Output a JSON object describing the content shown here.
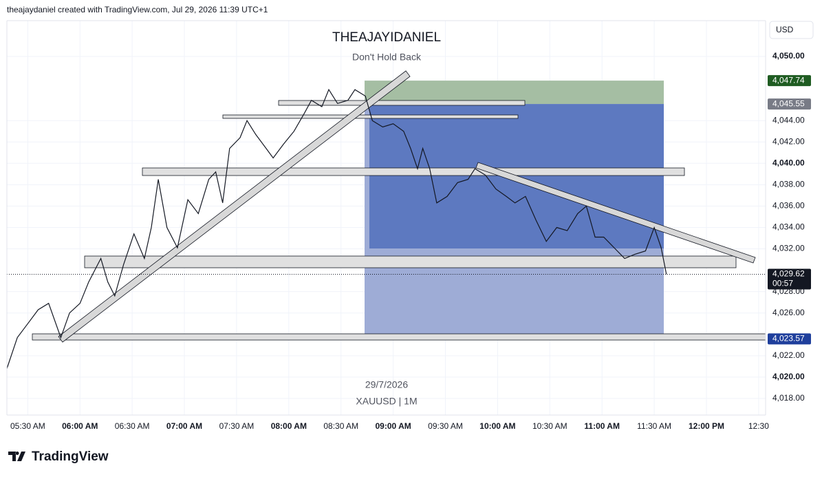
{
  "header": "theajaydaniel created with TradingView.com, Jul 29, 2026 11:39 UTC+1",
  "logo": "TradingView",
  "chart_data": {
    "type": "line",
    "title": "THEAJAYIDANIEL",
    "subtitle": "Don't Hold Back",
    "watermark": [
      "29/7/2026",
      "XAUUSD | 1M"
    ],
    "currency": "USD",
    "color": "#131722",
    "x": [
      "05:18 AM",
      "05:24 AM",
      "05:30 AM",
      "05:36 AM",
      "05:42 AM",
      "05:49 AM",
      "05:54 AM",
      "06:00 AM",
      "06:05 AM",
      "06:12 AM",
      "06:16 AM",
      "06:20 AM",
      "06:25 AM",
      "06:31 AM",
      "06:37 AM",
      "06:41 AM",
      "06:45 AM",
      "06:50 AM",
      "06:56 AM",
      "07:02 AM",
      "07:08 AM",
      "07:14 AM",
      "07:18 AM",
      "07:22 AM",
      "07:26 AM",
      "07:32 AM",
      "07:36 AM",
      "07:41 AM",
      "07:47 AM",
      "07:51 AM",
      "07:57 AM",
      "08:03 AM",
      "08:09 AM",
      "08:13 AM",
      "08:19 AM",
      "08:23 AM",
      "08:28 AM",
      "08:34 AM",
      "08:38 AM",
      "08:44 AM",
      "08:48 AM",
      "08:54 AM",
      "09:00 AM",
      "09:06 AM",
      "09:10 AM",
      "09:14 AM",
      "09:17 AM",
      "09:21 AM",
      "09:25 AM",
      "09:31 AM",
      "09:37 AM",
      "09:43 AM",
      "09:47 AM",
      "09:53 AM",
      "09:59 AM",
      "10:05 AM",
      "10:10 AM",
      "10:16 AM",
      "10:22 AM",
      "10:28 AM",
      "10:34 AM",
      "10:40 AM",
      "10:46 AM",
      "10:51 AM",
      "10:56 AM",
      "11:01 AM",
      "11:07 AM",
      "11:13 AM",
      "11:19 AM",
      "11:25 AM",
      "11:30 AM",
      "11:34 AM",
      "11:37 AM"
    ],
    "values": [
      4020.8,
      4023.7,
      4025.0,
      4026.3,
      4026.9,
      4023.7,
      4026.0,
      4026.9,
      4028.9,
      4031.1,
      4028.9,
      4027.6,
      4030.5,
      4033.4,
      4031.1,
      4034.0,
      4038.5,
      4034.0,
      4032.1,
      4036.6,
      4035.3,
      4038.5,
      4039.2,
      4036.3,
      4041.4,
      4042.4,
      4044.0,
      4042.7,
      4041.4,
      4040.5,
      4041.8,
      4043.0,
      4044.7,
      4045.9,
      4045.3,
      4046.9,
      4045.6,
      4045.9,
      4046.9,
      4046.3,
      4044.0,
      4043.4,
      4043.7,
      4043.0,
      4041.4,
      4039.5,
      4041.4,
      4039.5,
      4036.3,
      4036.9,
      4038.2,
      4038.5,
      4039.5,
      4038.9,
      4037.6,
      4036.9,
      4036.3,
      4036.9,
      4034.7,
      4032.7,
      4034.0,
      4033.7,
      4035.3,
      4036.0,
      4033.1,
      4033.1,
      4032.1,
      4031.1,
      4031.5,
      4031.8,
      4034.0,
      4032.1,
      4029.62
    ],
    "xlim": [
      "05:18 AM",
      "12:34 PM"
    ],
    "xticks": [
      "05:30 AM",
      "06:00 AM",
      "06:30 AM",
      "07:00 AM",
      "07:30 AM",
      "08:00 AM",
      "08:30 AM",
      "09:00 AM",
      "09:30 AM",
      "10:00 AM",
      "10:30 AM",
      "11:00 AM",
      "11:30 AM",
      "12:00 PM",
      {
        "value": "12:30 PM",
        "label": "12:30"
      }
    ],
    "ylim": [
      4016.45,
      4053.35
    ],
    "yticks": [
      {
        "value": 4018,
        "label": "4,018.00"
      },
      {
        "value": 4020,
        "label": "4,020.00"
      },
      {
        "value": 4022,
        "label": "4,022.00"
      },
      {
        "value": 4026,
        "label": "4,026.00"
      },
      {
        "value": 4028,
        "label": "4,028.00"
      },
      {
        "value": 4032,
        "label": "4,032.00"
      },
      {
        "value": 4034,
        "label": "4,034.00"
      },
      {
        "value": 4036,
        "label": "4,036.00"
      },
      {
        "value": 4038,
        "label": "4,038.00"
      },
      {
        "value": 4040,
        "label": "4,040.00"
      },
      {
        "value": 4042,
        "label": "4,042.00"
      },
      {
        "value": 4044,
        "label": "4,044.00"
      },
      {
        "value": 4050,
        "label": "4,050.00"
      }
    ],
    "grid": true,
    "position": {
      "stop": {
        "value": 4047.74,
        "label": "4,047.74",
        "color": "#1f5c22"
      },
      "entry": {
        "value": 4045.55,
        "label": "4,045.55",
        "color": "#787b86"
      },
      "target": {
        "value": 4023.57,
        "label": "4,023.57",
        "color": "#1f3f9c"
      }
    },
    "last_price": {
      "value": 4029.62,
      "label": "4,029.62",
      "countdown": "00:57",
      "color": "#131722"
    }
  }
}
